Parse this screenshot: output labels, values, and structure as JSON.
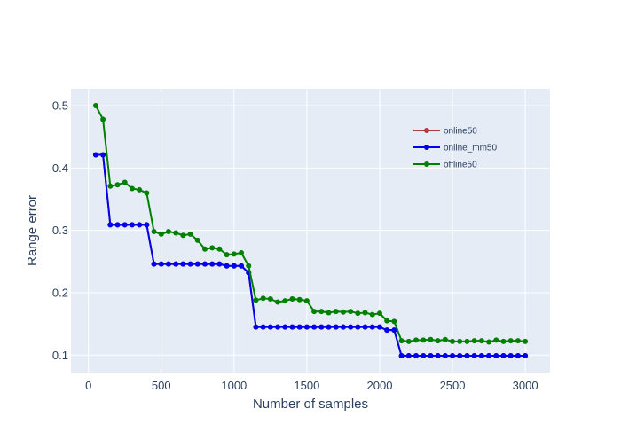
{
  "chart_data": {
    "type": "line",
    "title": "",
    "xlabel": "Number of samples",
    "ylabel": "Range error",
    "xlim": [
      -120,
      3170
    ],
    "ylim": [
      0.072,
      0.527
    ],
    "xticks": [
      0,
      500,
      1000,
      1500,
      2000,
      2500,
      3000
    ],
    "yticks": [
      0.1,
      0.2,
      0.3,
      0.4,
      0.5
    ],
    "xtick_labels": [
      "0",
      "500",
      "1000",
      "1500",
      "2000",
      "2500",
      "3000"
    ],
    "ytick_labels": [
      "0.1",
      "0.2",
      "0.3",
      "0.4",
      "0.5"
    ],
    "grid": true,
    "legend_position": "top-right",
    "x": [
      50,
      100,
      150,
      200,
      250,
      300,
      350,
      400,
      450,
      500,
      550,
      600,
      650,
      700,
      750,
      800,
      850,
      900,
      950,
      1000,
      1050,
      1100,
      1150,
      1200,
      1250,
      1300,
      1350,
      1400,
      1450,
      1500,
      1550,
      1600,
      1650,
      1700,
      1750,
      1800,
      1850,
      1900,
      1950,
      2000,
      2050,
      2100,
      2150,
      2200,
      2250,
      2300,
      2350,
      2400,
      2450,
      2500,
      2550,
      2600,
      2650,
      2700,
      2750,
      2800,
      2850,
      2900,
      2950,
      3000
    ],
    "series": [
      {
        "name": "online50",
        "color": "#b0383f",
        "values": [
          0.421,
          0.421,
          0.309,
          0.309,
          0.309,
          0.309,
          0.309,
          0.309,
          0.246,
          0.246,
          0.246,
          0.246,
          0.246,
          0.246,
          0.246,
          0.246,
          0.246,
          0.246,
          0.243,
          0.243,
          0.243,
          0.232,
          0.145,
          0.145,
          0.145,
          0.145,
          0.145,
          0.145,
          0.145,
          0.145,
          0.145,
          0.145,
          0.145,
          0.145,
          0.145,
          0.145,
          0.145,
          0.145,
          0.145,
          0.145,
          0.14,
          0.14,
          0.099,
          0.099,
          0.099,
          0.099,
          0.099,
          0.099,
          0.099,
          0.099,
          0.099,
          0.099,
          0.099,
          0.099,
          0.099,
          0.099,
          0.099,
          0.099,
          0.099,
          0.099
        ]
      },
      {
        "name": "online_mm50",
        "color": "#0000ee",
        "values": [
          0.421,
          0.421,
          0.309,
          0.309,
          0.309,
          0.309,
          0.309,
          0.309,
          0.246,
          0.246,
          0.246,
          0.246,
          0.246,
          0.246,
          0.246,
          0.246,
          0.246,
          0.246,
          0.243,
          0.243,
          0.243,
          0.232,
          0.145,
          0.145,
          0.145,
          0.145,
          0.145,
          0.145,
          0.145,
          0.145,
          0.145,
          0.145,
          0.145,
          0.145,
          0.145,
          0.145,
          0.145,
          0.145,
          0.145,
          0.145,
          0.14,
          0.14,
          0.099,
          0.099,
          0.099,
          0.099,
          0.099,
          0.099,
          0.099,
          0.099,
          0.099,
          0.099,
          0.099,
          0.099,
          0.099,
          0.099,
          0.099,
          0.099,
          0.099,
          0.099
        ]
      },
      {
        "name": "offline50",
        "color": "#008000",
        "values": [
          0.5,
          0.478,
          0.371,
          0.373,
          0.377,
          0.367,
          0.365,
          0.36,
          0.298,
          0.294,
          0.298,
          0.296,
          0.292,
          0.294,
          0.284,
          0.27,
          0.272,
          0.27,
          0.261,
          0.262,
          0.264,
          0.243,
          0.188,
          0.191,
          0.19,
          0.185,
          0.187,
          0.19,
          0.189,
          0.187,
          0.17,
          0.17,
          0.168,
          0.17,
          0.169,
          0.17,
          0.167,
          0.168,
          0.165,
          0.167,
          0.155,
          0.154,
          0.123,
          0.122,
          0.124,
          0.124,
          0.125,
          0.123,
          0.125,
          0.122,
          0.122,
          0.122,
          0.123,
          0.123,
          0.121,
          0.124,
          0.122,
          0.123,
          0.123,
          0.122
        ]
      }
    ]
  }
}
